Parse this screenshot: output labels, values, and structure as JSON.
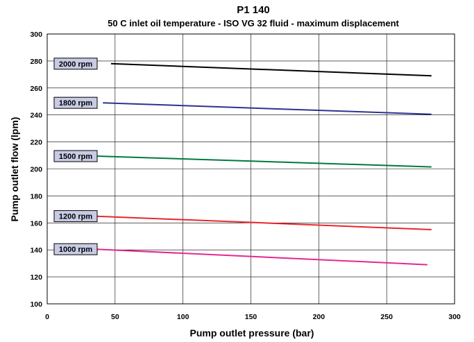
{
  "chart_data": {
    "type": "line",
    "title": "P1 140",
    "subtitle": "50 C inlet oil temperature - ISO VG 32 fluid - maximum displacement",
    "xlabel": "Pump outlet pressure (bar)",
    "ylabel": "Pump outlet flow (lpm)",
    "xlim": [
      0,
      300
    ],
    "ylim": [
      100,
      300
    ],
    "xticks": [
      0,
      50,
      100,
      150,
      200,
      250,
      300
    ],
    "yticks": [
      100,
      120,
      140,
      160,
      180,
      200,
      220,
      240,
      260,
      280,
      300
    ],
    "xtick_labels": [
      "0",
      "50",
      "100",
      "150",
      "200",
      "250",
      "300"
    ],
    "ytick_labels": [
      "100",
      "120",
      "140",
      "160",
      "180",
      "200",
      "220",
      "240",
      "260",
      "280",
      "300"
    ],
    "grid": true,
    "series": [
      {
        "name": "2000 rpm",
        "color": "#000000",
        "x": [
          47,
          283
        ],
        "y": [
          278,
          269
        ]
      },
      {
        "name": "1800 rpm",
        "color": "#2e3192",
        "x": [
          41,
          283
        ],
        "y": [
          249,
          240.5
        ]
      },
      {
        "name": "1500 rpm",
        "color": "#007a3d",
        "x": [
          36,
          283
        ],
        "y": [
          209.5,
          201.5
        ]
      },
      {
        "name": "1200 rpm",
        "color": "#e8262d",
        "x": [
          35,
          283
        ],
        "y": [
          165,
          155
        ]
      },
      {
        "name": "1000 rpm",
        "color": "#e3288f",
        "x": [
          36,
          280
        ],
        "y": [
          140.5,
          129
        ]
      }
    ],
    "label_style": {
      "fill": "#c7cbe4"
    }
  }
}
